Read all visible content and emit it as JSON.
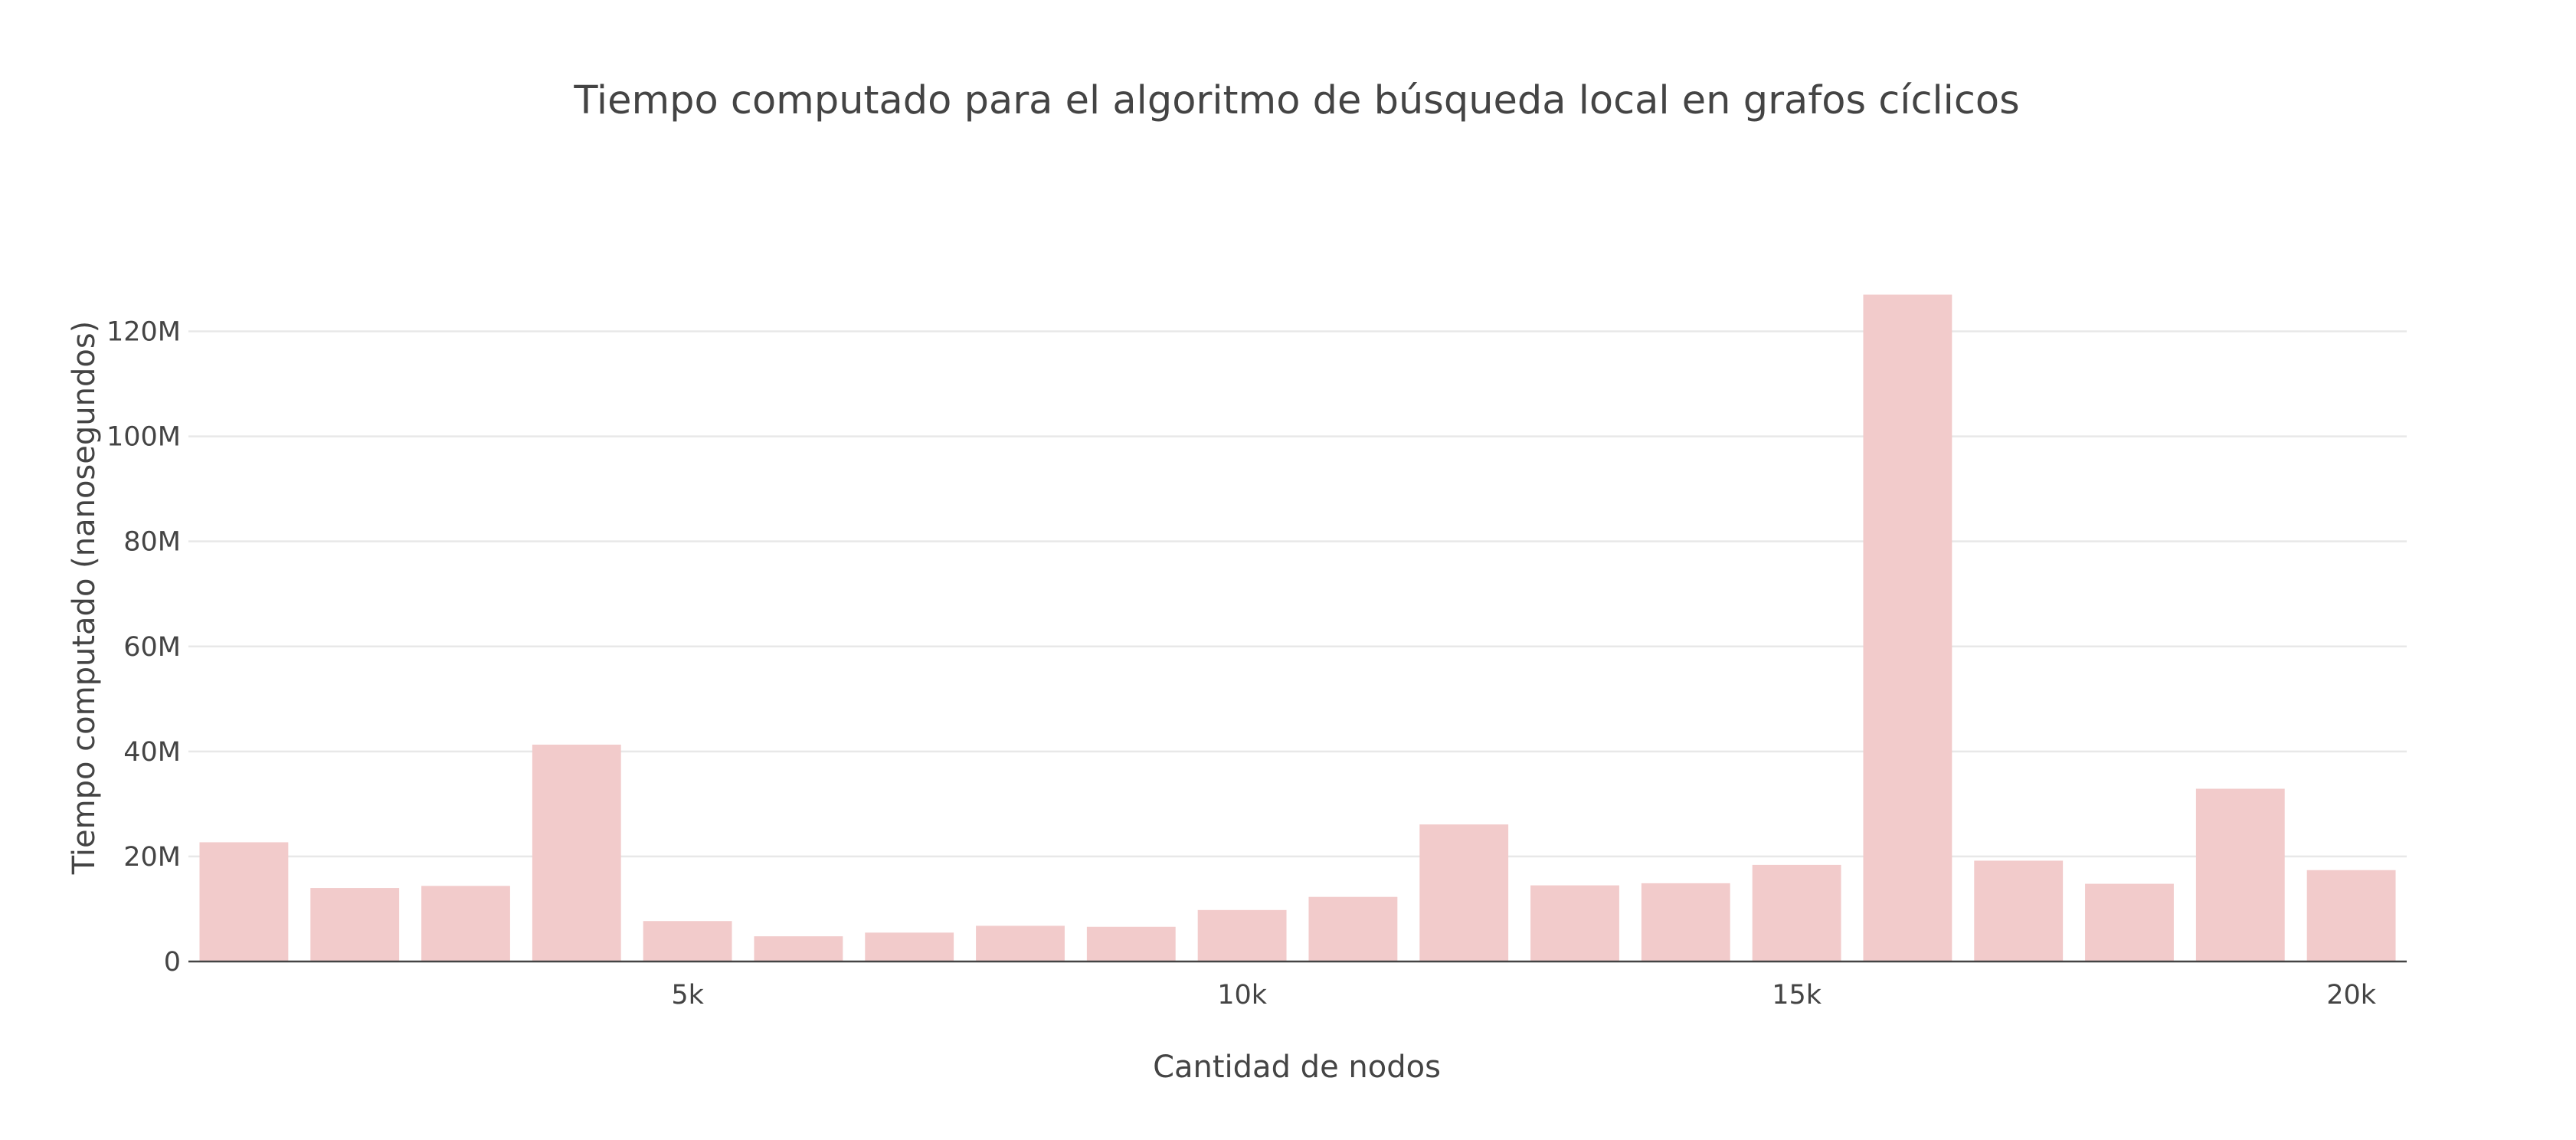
{
  "chart_data": {
    "type": "bar",
    "title": "Tiempo computado para el algoritmo de búsqueda local en grafos cíclicos",
    "xlabel": "Cantidad de nodos",
    "ylabel": "Tiempo computado (nanosegundos)",
    "x": [
      1000,
      2000,
      3000,
      4000,
      5000,
      6000,
      7000,
      8000,
      9000,
      10000,
      11000,
      12000,
      13000,
      14000,
      15000,
      16000,
      17000,
      18000,
      19000,
      20000
    ],
    "values": [
      22700000,
      14000000,
      14400000,
      41300000,
      7700000,
      4800000,
      5500000,
      6800000,
      6600000,
      9800000,
      12300000,
      26100000,
      14500000,
      14900000,
      18400000,
      127000000,
      19200000,
      14800000,
      32900000,
      17400000
    ],
    "xlim": [
      500,
      20500
    ],
    "ylim": [
      0,
      133500000
    ],
    "x_ticks": [
      5000,
      10000,
      15000,
      20000
    ],
    "x_tick_labels": [
      "5k",
      "10k",
      "15k",
      "20k"
    ],
    "y_ticks": [
      0,
      20000000,
      40000000,
      60000000,
      80000000,
      100000000,
      120000000
    ],
    "y_tick_labels": [
      "0",
      "20M",
      "40M",
      "60M",
      "80M",
      "100M",
      "120M"
    ],
    "bar_color": "#f2cbcb",
    "grid": true,
    "legend": "none"
  }
}
